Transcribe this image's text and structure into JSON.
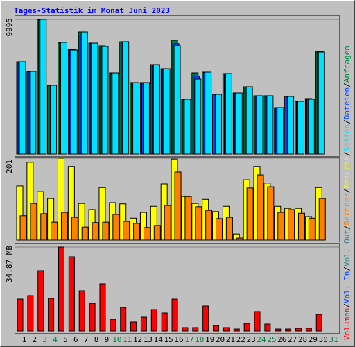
{
  "legend_separator": "/",
  "chart_data": [
    {
      "type": "bar",
      "title": "Tages-Statistik im Monat Juni 2023",
      "ylim": [
        0,
        9995
      ],
      "yticks": [
        9995
      ],
      "series": [
        {
          "name": "Anfragen",
          "color": "#008040",
          "values": [
            6852,
            6131,
            9995,
            5100,
            8295,
            7780,
            9068,
            8243,
            8037,
            6028,
            8346,
            5307,
            5307,
            6646,
            6337,
            8449,
            4070,
            6028,
            6079,
            4431,
            5976,
            4534,
            4997,
            4328,
            4328,
            3452,
            4276,
            3916,
            4122,
            7625,
            null
          ]
        },
        {
          "name": "Dateien",
          "color": "#0040FF",
          "values": [
            6800,
            6100,
            9950,
            5080,
            8250,
            7750,
            8800,
            8200,
            8000,
            6000,
            8300,
            5290,
            5290,
            6620,
            6320,
            8200,
            4050,
            5800,
            6050,
            4420,
            5950,
            4520,
            4980,
            4310,
            4310,
            3440,
            4260,
            3900,
            4100,
            7600,
            null
          ]
        },
        {
          "name": "Seiten",
          "color": "#00E0FF",
          "values": [
            6852,
            6131,
            9995,
            5100,
            8295,
            7728,
            9068,
            8243,
            7985,
            6028,
            8346,
            5307,
            5307,
            6646,
            6337,
            8037,
            4070,
            5564,
            6079,
            4431,
            5976,
            4534,
            4997,
            4328,
            4328,
            3452,
            4276,
            3916,
            4070,
            7573,
            null
          ]
        }
      ]
    },
    {
      "type": "bar",
      "ylim": [
        0,
        201
      ],
      "yticks": [
        201
      ],
      "series": [
        {
          "name": "Besuche",
          "color": "#FFFF00",
          "values": [
            133,
            191,
            119,
            102,
            201,
            181,
            90,
            75,
            129,
            92,
            89,
            54,
            68,
            83,
            138,
            199,
            107,
            90,
            100,
            70,
            83,
            15,
            148,
            181,
            140,
            83,
            78,
            78,
            58,
            129,
            null
          ]
        },
        {
          "name": "Rechner",
          "color": "#FF8000",
          "values": [
            60,
            90,
            65,
            44,
            68,
            56,
            32,
            43,
            44,
            63,
            46,
            41,
            31,
            36,
            85,
            167,
            107,
            82,
            73,
            53,
            56,
            5,
            128,
            160,
            131,
            68,
            75,
            66,
            54,
            102,
            null
          ]
        }
      ]
    },
    {
      "type": "bar",
      "ylim": [
        0,
        34.87
      ],
      "yticks": [
        {
          "value": 34.87,
          "label": "34.87 MB"
        }
      ],
      "categories": [
        "1",
        "2",
        "3",
        "4",
        "5",
        "6",
        "7",
        "8",
        "9",
        "10",
        "11",
        "12",
        "13",
        "14",
        "15",
        "16",
        "17",
        "18",
        "19",
        "20",
        "21",
        "22",
        "23",
        "24",
        "25",
        "26",
        "27",
        "28",
        "29",
        "30",
        "31"
      ],
      "category_colors": [
        "#000000",
        "#000000",
        "#008040",
        "#008040",
        "#000000",
        "#000000",
        "#000000",
        "#000000",
        "#000000",
        "#008040",
        "#008040",
        "#000000",
        "#000000",
        "#000000",
        "#000000",
        "#000000",
        "#008040",
        "#008040",
        "#000000",
        "#000000",
        "#000000",
        "#000000",
        "#000000",
        "#008040",
        "#008040",
        "#000000",
        "#000000",
        "#000000",
        "#000000",
        "#000000",
        "#008040"
      ],
      "series": [
        {
          "name": "Vol. Out",
          "color": "#408080"
        },
        {
          "name": "Vol. In",
          "color": "#0040FF"
        },
        {
          "name": "Volumen",
          "color": "#FF0000",
          "values": [
            13.25,
            14.7,
            25.07,
            13.54,
            34.87,
            30.84,
            16.71,
            11.53,
            19.6,
            4.9,
            9.8,
            3.75,
            5.76,
            8.93,
            7.49,
            13.25,
            1.44,
            1.44,
            10.37,
            2.3,
            1.44,
            0.86,
            3.17,
            8.07,
            2.88,
            0.86,
            0.86,
            1.15,
            1.15,
            6.92,
            null
          ]
        }
      ]
    }
  ]
}
